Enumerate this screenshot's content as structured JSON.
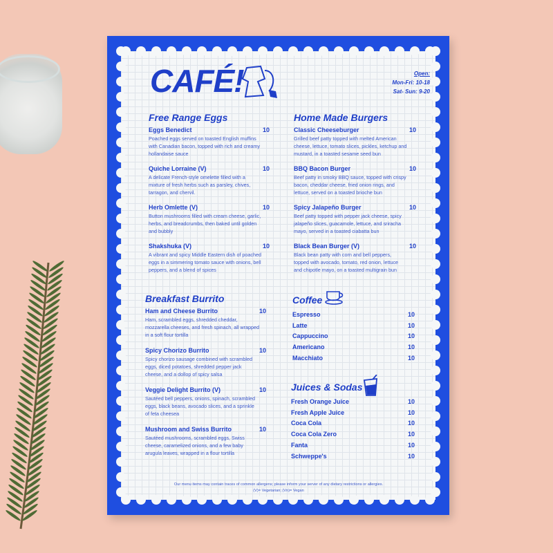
{
  "menu": {
    "title": "CAFÉ!",
    "hours": {
      "label": "Open:",
      "weekdays": "Mon-Fri: 10-18",
      "weekend": "Sat- Sun: 9-20"
    },
    "sections": [
      {
        "title": "Free Range Eggs",
        "items": [
          {
            "name": "Eggs Benedict",
            "price": "10",
            "desc": "Poached eggs served on toasted English muffins with Canadian bacon, topped with rich and creamy hollandaise sauce"
          },
          {
            "name": "Quiche Lorraine (V)",
            "price": "10",
            "desc": "A delicate French-style omelette filled with a mixture of fresh herbs such as parsley, chives, tarragon, and chervil."
          },
          {
            "name": "Herb Omlette (V)",
            "price": "10",
            "desc": "Button mushrooms filled with cream cheese, garlic, herbs, and breadcrumbs, then baked until golden and bubbly"
          },
          {
            "name": "Shakshuka (V)",
            "price": "10",
            "desc": "A vibrant and spicy Middle Eastern dish of poached eggs in a simmering tomato sauce with onions, bell peppers, and a blend of spices"
          }
        ]
      },
      {
        "title": "Home Made Burgers",
        "items": [
          {
            "name": "Classic Cheeseburger",
            "price": "10",
            "desc": "Grilled beef patty topped with melted American cheese, lettuce, tomato slices, pickles, ketchup and mustard, in a toasted sesame seed bun"
          },
          {
            "name": "BBQ Bacon Burger",
            "price": "10",
            "desc": "Beef patty in smoky BBQ sauce, topped with crispy bacon, cheddar cheese, fried onion rings, and lettuce, served on a toasted brioche bun"
          },
          {
            "name": "Spicy Jalapeño Burger",
            "price": "10",
            "desc": "Beef patty topped with pepper jack cheese, spicy jalapeño slices, guacamole, lettuce, and sriracha mayo, served in a toasted ciabatta bun"
          },
          {
            "name": "Black Bean Burger (V)",
            "price": "10",
            "desc": "Black bean patty with corn and bell peppers, topped with avocado, tomato, red onion, lettuce and chipotle mayo, on a toasted multigrain bun"
          }
        ]
      },
      {
        "title": "Breakfast Burrito",
        "items": [
          {
            "name": "Ham and Cheese Burrito",
            "price": "10",
            "desc": "Ham, scrambled eggs, shredded cheddar, mozzarella cheeses, and fresh spinach, all wrapped in a soft flour tortilla"
          },
          {
            "name": "Spicy Chorizo Burrito",
            "price": "10",
            "desc": "Spicy chorizo sausage combined with scrambled eggs, diced potatoes, shredded pepper jack cheese, and a dollop of spicy salsa"
          },
          {
            "name": "Veggie Delight Burrito (V)",
            "price": "10",
            "desc": "Sautéed bell peppers, onions, spinach, scrambled eggs, black beans, avocado slices, and a sprinkle of feta cheesea"
          },
          {
            "name": "Mushroom and Swiss Burrito",
            "price": "10",
            "desc": "Sautéed mushrooms, scrambled eggs, Swiss cheese, caramelized onions, and a few baby arugula leaves, wrapped in a flour tortilla"
          }
        ]
      },
      {
        "title": "Coffee",
        "items": [
          {
            "name": "Espresso",
            "price": "10"
          },
          {
            "name": "Latte",
            "price": "10"
          },
          {
            "name": "Cappuccino",
            "price": "10"
          },
          {
            "name": "Americano",
            "price": "10"
          },
          {
            "name": "Macchiato",
            "price": "10"
          }
        ]
      },
      {
        "title": "Juices & Sodas",
        "items": [
          {
            "name": "Fresh Orange Juice",
            "price": "10"
          },
          {
            "name": "Fresh Apple Juice",
            "price": "10"
          },
          {
            "name": "Coca Cola",
            "price": "10"
          },
          {
            "name": "Coca Cola Zero",
            "price": "10"
          },
          {
            "name": "Fanta",
            "price": "10"
          },
          {
            "name": "Schweppe's",
            "price": "10"
          }
        ]
      }
    ],
    "footer": {
      "allergens": "Our menu items may contain traces of common allergens; please inform your server of any dietary restrictions or allergies.",
      "legend": "(V)= Vegetarian; (Vn)= Vegan"
    }
  },
  "colors": {
    "background": "#f3c7b6",
    "brand_blue": "#1f4ee0",
    "paper": "#f5f7f8"
  },
  "icons": [
    "moka-pot-icon",
    "coffee-cup-icon",
    "soda-glass-icon"
  ]
}
